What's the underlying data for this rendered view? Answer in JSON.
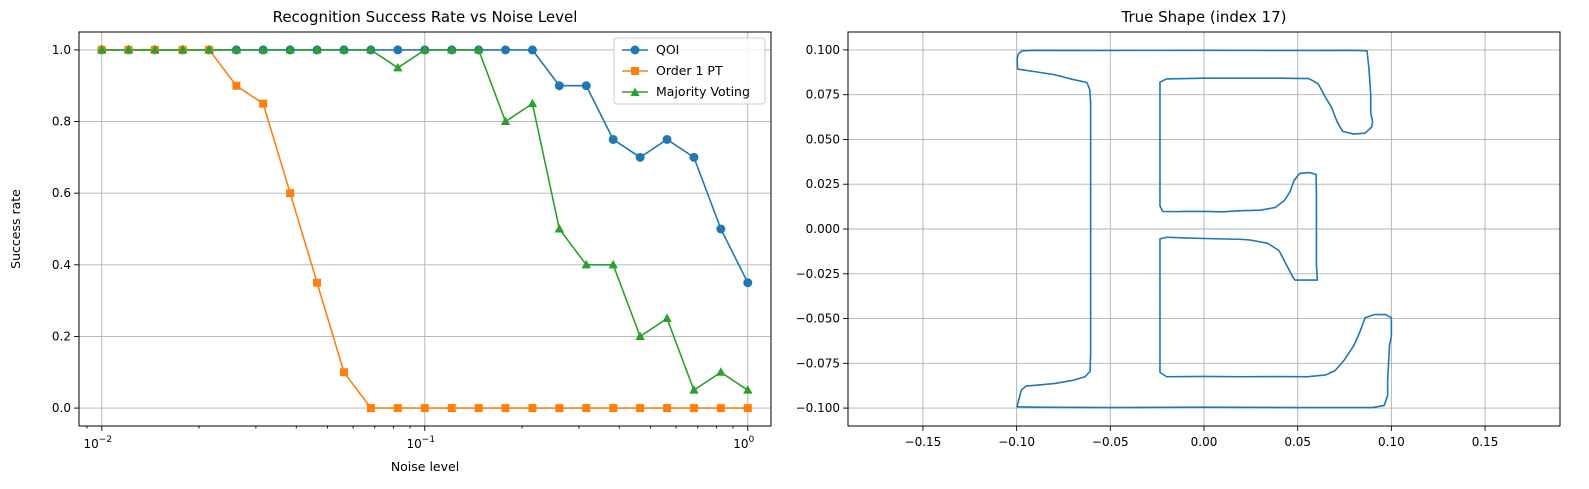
{
  "chart_data": [
    {
      "type": "line",
      "title": "Recognition Success Rate vs Noise Level",
      "xlabel": "Noise level",
      "ylabel": "Success rate",
      "xscale": "log",
      "xlim": [
        0.0085,
        1.18
      ],
      "ylim": [
        -0.05,
        1.05
      ],
      "grid": true,
      "legend_position": "top-right",
      "x_tick_base": "10",
      "x_tick_exponents": [
        "−2",
        "−1",
        "0"
      ],
      "x_tick_values": [
        0.01,
        0.1,
        1
      ],
      "y_ticks": [
        "0.0",
        "0.2",
        "0.4",
        "0.6",
        "0.8",
        "1.0"
      ],
      "x": [
        0.01,
        0.0121,
        0.0146,
        0.0178,
        0.0215,
        0.0261,
        0.0316,
        0.0383,
        0.0464,
        0.0562,
        0.0681,
        0.0825,
        0.1,
        0.1212,
        0.1468,
        0.1778,
        0.2154,
        0.261,
        0.3162,
        0.3831,
        0.4642,
        0.5623,
        0.6813,
        0.8254,
        1.0
      ],
      "series": [
        {
          "name": "QOI",
          "color": "#1f77b4",
          "marker": "circle",
          "values": [
            1,
            1,
            1,
            1,
            1,
            1,
            1,
            1,
            1,
            1,
            1,
            1,
            1,
            1,
            1,
            1,
            1,
            0.9,
            0.9,
            0.75,
            0.7,
            0.75,
            0.7,
            0.5,
            0.35
          ]
        },
        {
          "name": "Order 1 PT",
          "color": "#ff7f0e",
          "marker": "square",
          "values": [
            1,
            1,
            1,
            1,
            1,
            0.9,
            0.85,
            0.6,
            0.35,
            0.1,
            0,
            0,
            0,
            0,
            0,
            0,
            0,
            0,
            0,
            0,
            0,
            0,
            0,
            0,
            0
          ]
        },
        {
          "name": "Majority Voting",
          "color": "#2ca02c",
          "marker": "triangle",
          "values": [
            1,
            1,
            1,
            1,
            1,
            1,
            1,
            1,
            1,
            1,
            1,
            0.95,
            1,
            1,
            1,
            0.8,
            0.85,
            0.5,
            0.4,
            0.4,
            0.2,
            0.25,
            0.05,
            0.1,
            0.05
          ]
        }
      ]
    },
    {
      "type": "line",
      "title": "True Shape (index 17)",
      "xlabel": "",
      "ylabel": "",
      "xlim": [
        -0.19,
        0.19
      ],
      "ylim": [
        -0.11,
        0.11
      ],
      "grid": true,
      "x_ticks": [
        "−0.15",
        "−0.10",
        "−0.05",
        "0.00",
        "0.05",
        "0.10",
        "0.15"
      ],
      "x_tick_values": [
        -0.15,
        -0.1,
        -0.05,
        0.0,
        0.05,
        0.1,
        0.15
      ],
      "y_ticks": [
        "−0.100",
        "−0.075",
        "−0.050",
        "−0.025",
        "0.000",
        "0.025",
        "0.050",
        "0.075",
        "0.100"
      ],
      "y_tick_values": [
        -0.1,
        -0.075,
        -0.05,
        -0.025,
        0.0,
        0.025,
        0.05,
        0.075,
        0.1
      ],
      "series": [
        {
          "name": "shape",
          "color": "#1f77b4",
          "points": [
            [
              -0.099,
              0.098
            ],
            [
              -0.097,
              0.0995
            ],
            [
              -0.09,
              0.0998
            ],
            [
              -0.05,
              0.0997
            ],
            [
              0.0,
              0.0998
            ],
            [
              0.05,
              0.0997
            ],
            [
              0.08,
              0.0998
            ],
            [
              0.087,
              0.0995
            ],
            [
              0.088,
              0.09
            ],
            [
              0.089,
              0.075
            ],
            [
              0.089,
              0.065
            ],
            [
              0.09,
              0.06
            ],
            [
              0.0895,
              0.057
            ],
            [
              0.086,
              0.0535
            ],
            [
              0.08,
              0.053
            ],
            [
              0.074,
              0.0545
            ],
            [
              0.071,
              0.06
            ],
            [
              0.068,
              0.068
            ],
            [
              0.064,
              0.075
            ],
            [
              0.061,
              0.081
            ],
            [
              0.056,
              0.084
            ],
            [
              0.04,
              0.0842
            ],
            [
              0.0,
              0.0842
            ],
            [
              -0.02,
              0.0838
            ],
            [
              -0.0235,
              0.082
            ],
            [
              -0.0235,
              0.07
            ],
            [
              -0.0235,
              0.04
            ],
            [
              -0.0235,
              0.013
            ],
            [
              -0.022,
              0.0098
            ],
            [
              -0.015,
              0.0097
            ],
            [
              -0.01,
              0.0098
            ],
            [
              0.0,
              0.0098
            ],
            [
              0.01,
              0.0096
            ],
            [
              0.02,
              0.0102
            ],
            [
              0.03,
              0.0105
            ],
            [
              0.038,
              0.012
            ],
            [
              0.043,
              0.016
            ],
            [
              0.046,
              0.021
            ],
            [
              0.048,
              0.027
            ],
            [
              0.051,
              0.031
            ],
            [
              0.056,
              0.0315
            ],
            [
              0.0598,
              0.0305
            ],
            [
              0.06,
              0.02
            ],
            [
              0.06,
              0.0
            ],
            [
              0.06,
              -0.02
            ],
            [
              0.0605,
              -0.0285
            ],
            [
              0.055,
              -0.0285
            ],
            [
              0.0485,
              -0.0285
            ],
            [
              0.047,
              -0.026
            ],
            [
              0.043,
              -0.018
            ],
            [
              0.04,
              -0.012
            ],
            [
              0.034,
              -0.008
            ],
            [
              0.025,
              -0.0062
            ],
            [
              0.02,
              -0.0058
            ],
            [
              0.0,
              -0.0053
            ],
            [
              -0.01,
              -0.005
            ],
            [
              -0.02,
              -0.0046
            ],
            [
              -0.0235,
              -0.0055
            ],
            [
              -0.0235,
              -0.03
            ],
            [
              -0.0235,
              -0.06
            ],
            [
              -0.0235,
              -0.08
            ],
            [
              -0.02,
              -0.0825
            ],
            [
              0.0,
              -0.0823
            ],
            [
              0.02,
              -0.0825
            ],
            [
              0.04,
              -0.0824
            ],
            [
              0.055,
              -0.0825
            ],
            [
              0.065,
              -0.0815
            ],
            [
              0.07,
              -0.079
            ],
            [
              0.075,
              -0.073
            ],
            [
              0.08,
              -0.065
            ],
            [
              0.083,
              -0.058
            ],
            [
              0.086,
              -0.0495
            ],
            [
              0.091,
              -0.0478
            ],
            [
              0.097,
              -0.0478
            ],
            [
              0.1,
              -0.0495
            ],
            [
              0.1,
              -0.06
            ],
            [
              0.099,
              -0.065
            ],
            [
              0.0985,
              -0.075
            ],
            [
              0.098,
              -0.085
            ],
            [
              0.098,
              -0.093
            ],
            [
              0.0962,
              -0.0985
            ],
            [
              0.09,
              -0.0997
            ],
            [
              0.05,
              -0.0997
            ],
            [
              0.0,
              -0.0995
            ],
            [
              -0.05,
              -0.0997
            ],
            [
              -0.09,
              -0.0995
            ],
            [
              -0.0998,
              -0.0993
            ],
            [
              -0.099,
              -0.096
            ],
            [
              -0.0975,
              -0.09
            ],
            [
              -0.095,
              -0.0877
            ],
            [
              -0.09,
              -0.0873
            ],
            [
              -0.08,
              -0.0863
            ],
            [
              -0.07,
              -0.0845
            ],
            [
              -0.0635,
              -0.0825
            ],
            [
              -0.0608,
              -0.0795
            ],
            [
              -0.0605,
              -0.07
            ],
            [
              -0.0605,
              -0.04
            ],
            [
              -0.0605,
              0.0
            ],
            [
              -0.0605,
              0.04
            ],
            [
              -0.0605,
              0.07
            ],
            [
              -0.061,
              0.078
            ],
            [
              -0.0625,
              0.0818
            ],
            [
              -0.07,
              0.0835
            ],
            [
              -0.08,
              0.0862
            ],
            [
              -0.09,
              0.0878
            ],
            [
              -0.0995,
              0.0893
            ],
            [
              -0.0997,
              0.095
            ],
            [
              -0.099,
              0.098
            ]
          ]
        }
      ]
    }
  ]
}
